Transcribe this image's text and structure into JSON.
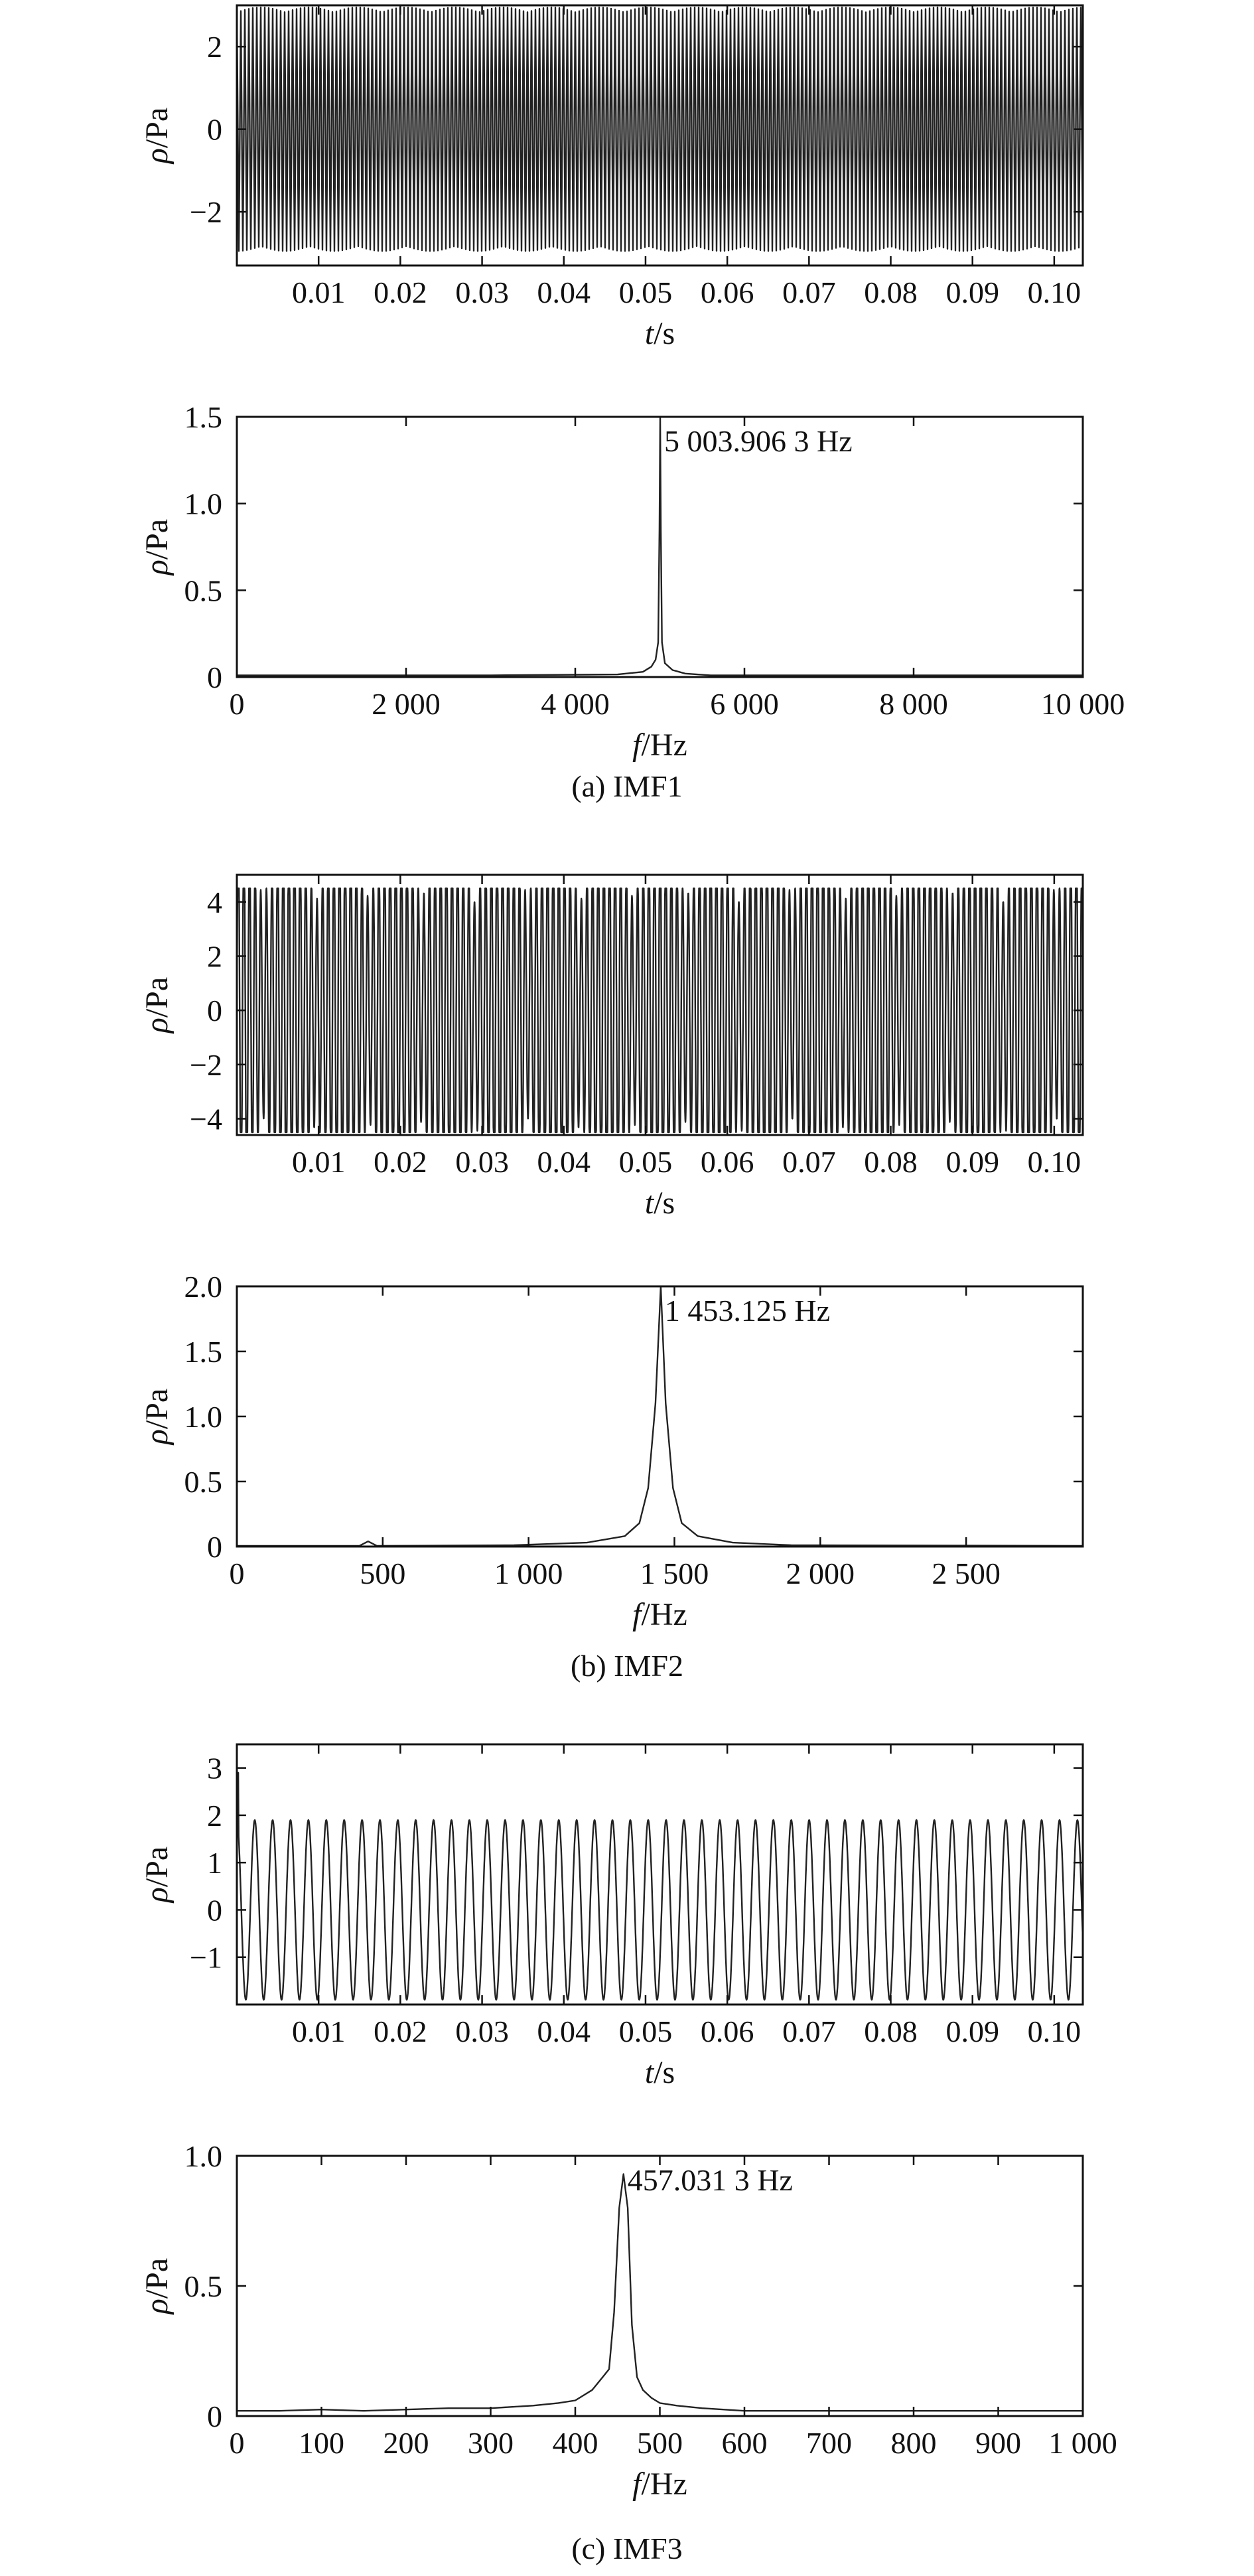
{
  "figure": {
    "captions": [
      "(a) IMF1",
      "(b) IMF2",
      "(c) IMF3"
    ]
  },
  "chart_data": [
    {
      "id": "imf1-time",
      "type": "line",
      "xlabel_var": "t",
      "xlabel_unit": "/s",
      "ylabel_var": "ρ",
      "ylabel_unit": "/Pa",
      "xlim": [
        0,
        0.1035
      ],
      "ylim": [
        -3.3,
        3.0
      ],
      "xticks": [
        0.01,
        0.02,
        0.03,
        0.04,
        0.05,
        0.06,
        0.07,
        0.08,
        0.09,
        0.1
      ],
      "xtick_labels": [
        "0.01",
        "0.02",
        "0.03",
        "0.04",
        "0.05",
        "0.06",
        "0.07",
        "0.08",
        "0.09",
        "0.10"
      ],
      "yticks": [
        -2,
        0,
        2
      ],
      "ytick_labels": [
        "−2",
        "0",
        "2"
      ],
      "signal": {
        "kind": "dense",
        "amplitude": 2.95,
        "note": "dense high-frequency oscillation filling the band"
      }
    },
    {
      "id": "imf1-spectrum",
      "type": "line",
      "xlabel_var": "f",
      "xlabel_unit": "/Hz",
      "ylabel_var": "ρ",
      "ylabel_unit": "/Pa",
      "xlim": [
        0,
        10000
      ],
      "ylim": [
        0,
        1.5
      ],
      "xticks": [
        0,
        2000,
        4000,
        6000,
        8000,
        10000
      ],
      "xtick_labels": [
        "0",
        "2 000",
        "4 000",
        "6 000",
        "8 000",
        "10 000"
      ],
      "yticks": [
        0,
        0.5,
        1.0,
        1.5
      ],
      "ytick_labels": [
        "0",
        "0.5",
        "1.0",
        "1.5"
      ],
      "peak": {
        "x": 5003.9063,
        "y": 1.5,
        "label": "5 003.906 3 Hz"
      },
      "spectrum": [
        [
          0,
          0.01
        ],
        [
          3000,
          0.01
        ],
        [
          4500,
          0.015
        ],
        [
          4800,
          0.03
        ],
        [
          4900,
          0.06
        ],
        [
          4950,
          0.1
        ],
        [
          4980,
          0.2
        ],
        [
          4995,
          0.85
        ],
        [
          5003.9,
          1.5
        ],
        [
          5012,
          0.85
        ],
        [
          5025,
          0.2
        ],
        [
          5060,
          0.08
        ],
        [
          5150,
          0.04
        ],
        [
          5300,
          0.02
        ],
        [
          5600,
          0.01
        ],
        [
          10000,
          0.01
        ]
      ]
    },
    {
      "id": "imf2-time",
      "type": "line",
      "xlabel_var": "t",
      "xlabel_unit": "/s",
      "ylabel_var": "ρ",
      "ylabel_unit": "/Pa",
      "xlim": [
        0,
        0.1035
      ],
      "ylim": [
        -4.6,
        5.0
      ],
      "xticks": [
        0.01,
        0.02,
        0.03,
        0.04,
        0.05,
        0.06,
        0.07,
        0.08,
        0.09,
        0.1
      ],
      "xtick_labels": [
        "0.01",
        "0.02",
        "0.03",
        "0.04",
        "0.05",
        "0.06",
        "0.07",
        "0.08",
        "0.09",
        "0.10"
      ],
      "yticks": [
        -4,
        -2,
        0,
        2,
        4
      ],
      "ytick_labels": [
        "−4",
        "−2",
        "0",
        "2",
        "4"
      ],
      "signal": {
        "kind": "modulated",
        "amplitude": 4.5,
        "carrier_hz": 1453.125,
        "beat_cycles": 16
      }
    },
    {
      "id": "imf2-spectrum",
      "type": "line",
      "xlabel_var": "f",
      "xlabel_unit": "/Hz",
      "ylabel_var": "ρ",
      "ylabel_unit": "/Pa",
      "xlim": [
        0,
        2900
      ],
      "ylim": [
        0,
        2.0
      ],
      "xticks": [
        0,
        500,
        1000,
        1500,
        2000,
        2500
      ],
      "xtick_labels": [
        "0",
        "500",
        "1 000",
        "1 500",
        "2 000",
        "2 500"
      ],
      "yticks": [
        0,
        0.5,
        1.0,
        1.5,
        2.0
      ],
      "ytick_labels": [
        "0",
        "0.5",
        "1.0",
        "1.5",
        "2.0"
      ],
      "peak": {
        "x": 1453.125,
        "y": 2.0,
        "label": "1 453.125 Hz"
      },
      "spectrum": [
        [
          0,
          0.005
        ],
        [
          420,
          0.005
        ],
        [
          450,
          0.04
        ],
        [
          480,
          0.005
        ],
        [
          950,
          0.01
        ],
        [
          1200,
          0.03
        ],
        [
          1330,
          0.08
        ],
        [
          1380,
          0.18
        ],
        [
          1410,
          0.45
        ],
        [
          1435,
          1.1
        ],
        [
          1453.1,
          2.0
        ],
        [
          1470,
          1.1
        ],
        [
          1495,
          0.45
        ],
        [
          1525,
          0.18
        ],
        [
          1580,
          0.08
        ],
        [
          1700,
          0.03
        ],
        [
          1900,
          0.01
        ],
        [
          2900,
          0.005
        ]
      ]
    },
    {
      "id": "imf3-time",
      "type": "line",
      "xlabel_var": "t",
      "xlabel_unit": "/s",
      "ylabel_var": "ρ",
      "ylabel_unit": "/Pa",
      "xlim": [
        0,
        0.1035
      ],
      "ylim": [
        -2.0,
        3.5
      ],
      "xticks": [
        0.01,
        0.02,
        0.03,
        0.04,
        0.05,
        0.06,
        0.07,
        0.08,
        0.09,
        0.1
      ],
      "xtick_labels": [
        "0.01",
        "0.02",
        "0.03",
        "0.04",
        "0.05",
        "0.06",
        "0.07",
        "0.08",
        "0.09",
        "0.10"
      ],
      "yticks": [
        -1,
        0,
        1,
        2,
        3
      ],
      "ytick_labels": [
        "−1",
        "0",
        "1",
        "2",
        "3"
      ],
      "signal": {
        "kind": "sine",
        "offset": 0.0,
        "amplitude": 1.9,
        "frequency_hz": 457.0313,
        "start_spike": 2.9
      }
    },
    {
      "id": "imf3-spectrum",
      "type": "line",
      "xlabel_var": "f",
      "xlabel_unit": "/Hz",
      "ylabel_var": "ρ",
      "ylabel_unit": "/Pa",
      "xlim": [
        0,
        1000
      ],
      "ylim": [
        0,
        1.0
      ],
      "xticks": [
        0,
        100,
        200,
        300,
        400,
        500,
        600,
        700,
        800,
        900,
        1000
      ],
      "xtick_labels": [
        "0",
        "100",
        "200",
        "300",
        "400",
        "500",
        "600",
        "700",
        "800",
        "900",
        "1 000"
      ],
      "yticks": [
        0,
        0.5,
        1.0
      ],
      "ytick_labels": [
        "0",
        "0.5",
        "1.0"
      ],
      "peak": {
        "x": 457.0313,
        "y": 0.93,
        "label": "457.031 3 Hz"
      },
      "spectrum": [
        [
          0,
          0.02
        ],
        [
          50,
          0.02
        ],
        [
          100,
          0.025
        ],
        [
          150,
          0.02
        ],
        [
          200,
          0.025
        ],
        [
          250,
          0.03
        ],
        [
          300,
          0.03
        ],
        [
          350,
          0.04
        ],
        [
          380,
          0.05
        ],
        [
          400,
          0.06
        ],
        [
          410,
          0.08
        ],
        [
          420,
          0.1
        ],
        [
          430,
          0.14
        ],
        [
          440,
          0.18
        ],
        [
          446,
          0.4
        ],
        [
          452,
          0.8
        ],
        [
          457,
          0.93
        ],
        [
          462,
          0.8
        ],
        [
          467,
          0.35
        ],
        [
          473,
          0.15
        ],
        [
          480,
          0.1
        ],
        [
          490,
          0.07
        ],
        [
          500,
          0.05
        ],
        [
          520,
          0.04
        ],
        [
          550,
          0.03
        ],
        [
          600,
          0.02
        ],
        [
          700,
          0.02
        ],
        [
          800,
          0.02
        ],
        [
          900,
          0.02
        ],
        [
          1000,
          0.02
        ]
      ]
    }
  ]
}
